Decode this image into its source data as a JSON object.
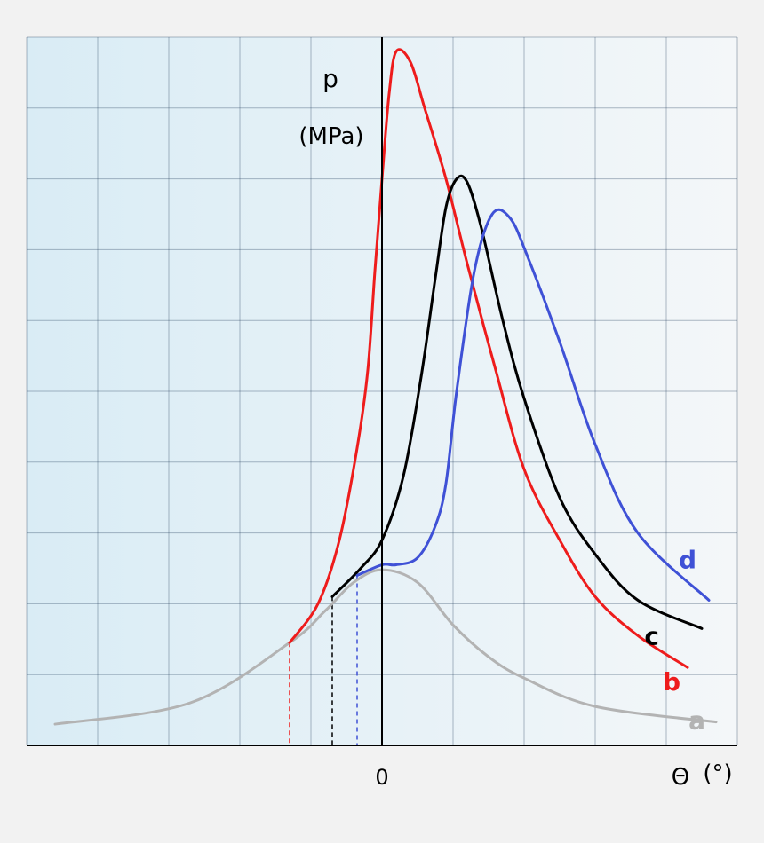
{
  "chart_data": {
    "type": "line",
    "title": "",
    "ylabel_symbol": "p",
    "ylabel_unit": "(MPa)",
    "xlabel_symbol": "Θ",
    "xlabel_unit": "(°)",
    "x_tick_zero": "0",
    "xlim": [
      -5,
      5
    ],
    "ylim": [
      0,
      10
    ],
    "grid": true,
    "background_gradient": [
      "#d9ecf5",
      "#f4f7f9"
    ],
    "axis_color": "#000000",
    "grid_color": "#1f3a5a",
    "series": [
      {
        "name": "a",
        "color": "#b3b3b3",
        "x": [
          -4.6,
          -2.7,
          -1.3,
          -0.8,
          -0.4,
          0.0,
          0.5,
          1.0,
          1.5,
          2.0,
          3.0,
          4.7
        ],
        "y": [
          0.3,
          0.6,
          1.45,
          1.9,
          2.3,
          2.48,
          2.3,
          1.7,
          1.25,
          0.95,
          0.55,
          0.33
        ]
      },
      {
        "name": "b",
        "color": "#ee1c1c",
        "x": [
          -1.3,
          -0.9,
          -0.6,
          -0.35,
          -0.2,
          -0.1,
          0.0,
          0.1,
          0.2,
          0.4,
          0.6,
          0.9,
          1.2,
          1.6,
          2.0,
          2.5,
          3.0,
          3.6,
          4.3
        ],
        "y": [
          1.45,
          2.0,
          2.9,
          4.2,
          5.3,
          6.7,
          8.0,
          9.2,
          9.8,
          9.65,
          9.0,
          8.0,
          6.8,
          5.3,
          3.9,
          2.9,
          2.1,
          1.55,
          1.1
        ]
      },
      {
        "name": "c",
        "color": "#000000",
        "x": [
          -0.7,
          -0.3,
          0.0,
          0.3,
          0.55,
          0.75,
          0.9,
          1.05,
          1.2,
          1.4,
          1.7,
          2.0,
          2.5,
          3.0,
          3.6,
          4.5
        ],
        "y": [
          2.1,
          2.5,
          2.9,
          3.8,
          5.2,
          6.6,
          7.6,
          8.0,
          7.95,
          7.3,
          6.0,
          4.9,
          3.5,
          2.7,
          2.05,
          1.65
        ]
      },
      {
        "name": "d",
        "color": "#3f51d6",
        "x": [
          -0.35,
          0.0,
          0.2,
          0.5,
          0.75,
          0.9,
          1.05,
          1.3,
          1.55,
          1.8,
          2.05,
          2.5,
          3.0,
          3.6,
          4.6
        ],
        "y": [
          2.4,
          2.55,
          2.55,
          2.65,
          3.1,
          3.7,
          5.0,
          6.7,
          7.5,
          7.45,
          6.9,
          5.7,
          4.25,
          3.0,
          2.05
        ]
      }
    ],
    "drop_lines": [
      {
        "color": "#ee1c1c",
        "x": -1.3
      },
      {
        "color": "#000000",
        "x": -0.7
      },
      {
        "color": "#3f51d6",
        "x": -0.35
      }
    ]
  }
}
